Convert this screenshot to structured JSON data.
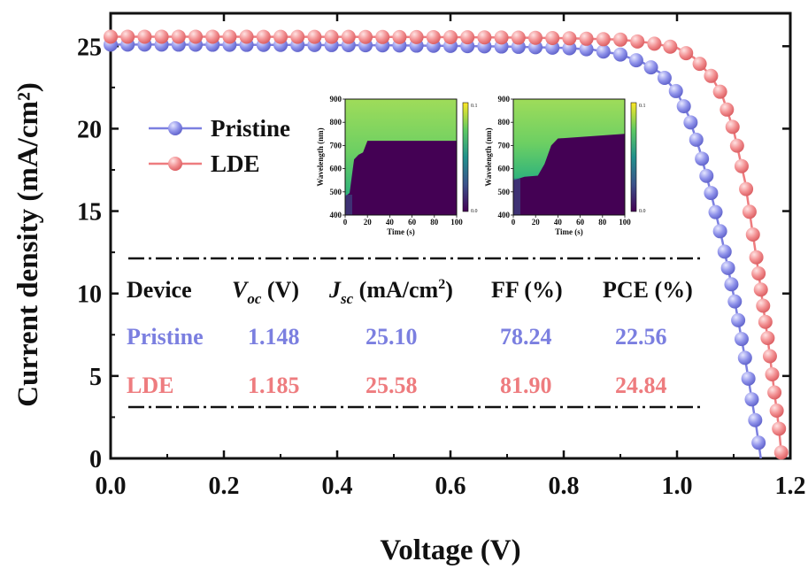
{
  "chart_data": {
    "type": "line",
    "xlabel": "Voltage (V)",
    "ylabel": "Current density (mA/cm²)",
    "xlim": [
      0.0,
      1.2
    ],
    "ylim": [
      0,
      27
    ],
    "x_ticks": [
      "0.0",
      "0.2",
      "0.4",
      "0.6",
      "0.8",
      "1.0",
      "1.2"
    ],
    "y_ticks": [
      "0",
      "5",
      "10",
      "15",
      "20",
      "25"
    ],
    "legend_position": "upper-left",
    "series": [
      {
        "name": "Pristine",
        "color": "#7b7fe0",
        "x": [
          0.0,
          0.1,
          0.2,
          0.3,
          0.4,
          0.5,
          0.6,
          0.7,
          0.8,
          0.85,
          0.9,
          0.94,
          0.97,
          1.0,
          1.02,
          1.04,
          1.06,
          1.08,
          1.1,
          1.12,
          1.14,
          1.148
        ],
        "y": [
          25.1,
          25.1,
          25.09,
          25.08,
          25.07,
          25.05,
          25.02,
          24.98,
          24.9,
          24.8,
          24.5,
          24.0,
          23.4,
          22.2,
          20.8,
          18.7,
          16.1,
          13.2,
          9.9,
          6.1,
          1.9,
          0.0
        ]
      },
      {
        "name": "LDE",
        "color": "#ee7c7f",
        "x": [
          0.0,
          0.1,
          0.2,
          0.3,
          0.4,
          0.5,
          0.6,
          0.7,
          0.8,
          0.9,
          0.95,
          1.0,
          1.03,
          1.06,
          1.08,
          1.1,
          1.12,
          1.14,
          1.16,
          1.18,
          1.185
        ],
        "y": [
          25.58,
          25.58,
          25.58,
          25.57,
          25.57,
          25.56,
          25.55,
          25.53,
          25.49,
          25.4,
          25.22,
          24.9,
          24.3,
          23.2,
          22.0,
          19.9,
          16.8,
          12.2,
          7.3,
          1.8,
          0.0
        ]
      }
    ],
    "table": {
      "headers": [
        {
          "main": "Device",
          "sub": ""
        },
        {
          "main": "V",
          "sub": "oc",
          "unit": " (V)"
        },
        {
          "main": "J",
          "sub": "sc",
          "unit": " (mA/cm",
          "sup": "2",
          "end": ")"
        },
        {
          "main": "FF (%)",
          "sub": ""
        },
        {
          "main": "PCE (%)",
          "sub": ""
        }
      ],
      "rows": [
        {
          "device": "Pristine",
          "voc": "1.148",
          "jsc": "25.10",
          "ff": "78.24",
          "pce": "22.56",
          "color": "#7b7fe0"
        },
        {
          "device": "LDE",
          "voc": "1.185",
          "jsc": "25.58",
          "ff": "81.90",
          "pce": "24.84",
          "color": "#ee7c7f"
        }
      ]
    },
    "insets": [
      {
        "type": "heatmap",
        "xlabel": "Time (s)",
        "ylabel": "Wavelength (nm)",
        "x_ticks": [
          "0",
          "20",
          "40",
          "60",
          "80",
          "100"
        ],
        "y_ticks": [
          "400",
          "500",
          "600",
          "700",
          "800",
          "900"
        ],
        "colorbar_ticks": [
          "0.1",
          "0.0"
        ],
        "boundary": [
          [
            0,
            480
          ],
          [
            4,
            495
          ],
          [
            8,
            640
          ],
          [
            10,
            650
          ],
          [
            12,
            660
          ],
          [
            16,
            670
          ],
          [
            20,
            720
          ],
          [
            100,
            720
          ]
        ]
      },
      {
        "type": "heatmap",
        "xlabel": "Time (s)",
        "ylabel": "Wavelength (nm)",
        "x_ticks": [
          "0",
          "20",
          "40",
          "60",
          "80",
          "100"
        ],
        "y_ticks": [
          "400",
          "500",
          "600",
          "700",
          "800",
          "900"
        ],
        "colorbar_ticks": [
          "0.1",
          "0.0"
        ],
        "boundary": [
          [
            0,
            550
          ],
          [
            10,
            565
          ],
          [
            22,
            570
          ],
          [
            28,
            620
          ],
          [
            34,
            700
          ],
          [
            40,
            730
          ],
          [
            100,
            750
          ]
        ]
      }
    ]
  }
}
